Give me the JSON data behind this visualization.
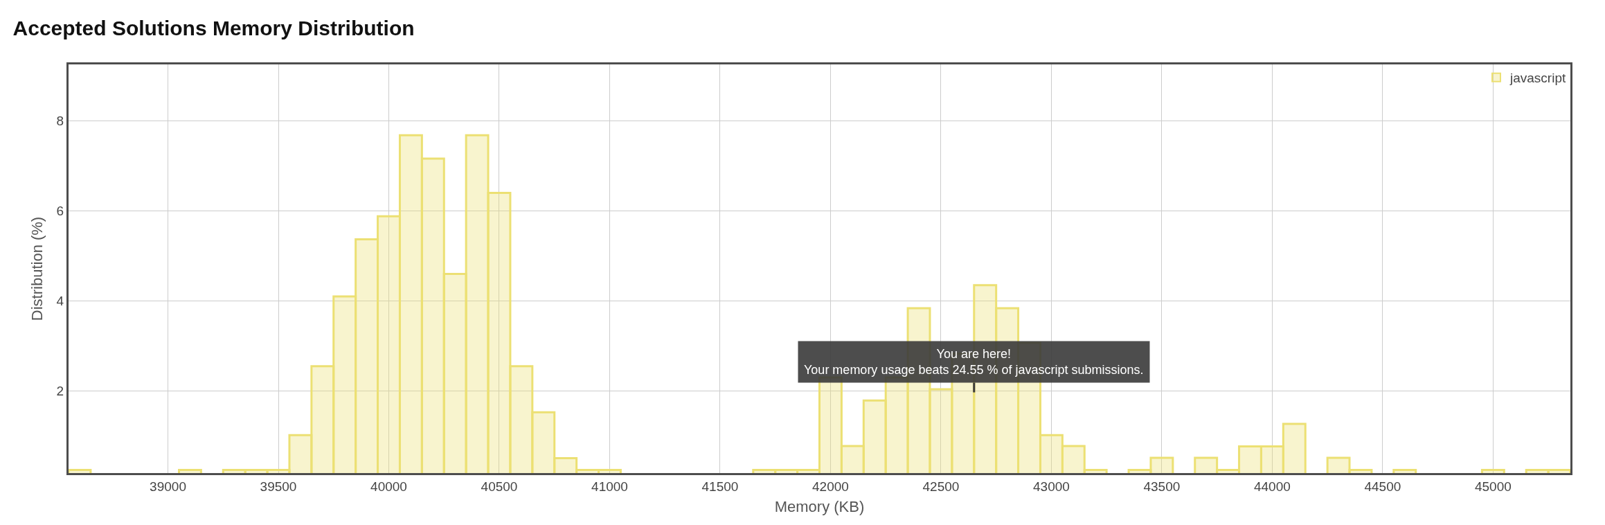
{
  "chart_data": {
    "type": "histogram",
    "title": "Accepted Solutions Memory Distribution",
    "xlabel": "Memory (KB)",
    "ylabel": "Distribution (%)",
    "bins": [
      38550,
      38650,
      38750,
      38850,
      38950,
      39050,
      39150,
      39250,
      39350,
      39450,
      39550,
      39650,
      39750,
      39850,
      39950,
      40050,
      40150,
      40250,
      40350,
      40450,
      40550,
      40650,
      40750,
      40850,
      40950,
      41050,
      41150,
      41250,
      41350,
      41450,
      41550,
      41650,
      41750,
      41850,
      41950,
      42050,
      42150,
      42250,
      42350,
      42450,
      42550,
      42650,
      42750,
      42850,
      42950,
      43050,
      43150,
      43250,
      43350,
      43450,
      43550,
      43650,
      43750,
      43850,
      43950,
      44050,
      44150,
      44250,
      44350,
      44450,
      44550,
      44650,
      44750,
      44850,
      44950,
      45050,
      45150,
      45250,
      45350
    ],
    "series": [
      {
        "name": "javascript",
        "color": "#ece073",
        "values": [
          0.25,
          null,
          null,
          null,
          null,
          0.25,
          null,
          0.25,
          0.25,
          0.25,
          1.02,
          2.55,
          4.1,
          5.37,
          5.88,
          7.68,
          7.16,
          4.6,
          7.68,
          6.4,
          2.55,
          1.53,
          0.51,
          0.25,
          0.25,
          null,
          null,
          null,
          null,
          null,
          null,
          0.25,
          0.25,
          0.25,
          2.3,
          0.78,
          1.79,
          2.3,
          3.84,
          2.04,
          2.83,
          4.35,
          3.84,
          3.07,
          1.02,
          0.78,
          0.25,
          null,
          0.25,
          0.52,
          null,
          0.52,
          0.25,
          0.77,
          0.77,
          1.27,
          null,
          0.52,
          0.25,
          null,
          0.25,
          null,
          null,
          null,
          0.25,
          null,
          0.25,
          0.25
        ]
      }
    ],
    "xlim": [
      38550,
      45350
    ],
    "xticks": [
      39000,
      39500,
      40000,
      40500,
      41000,
      41500,
      42000,
      42500,
      43000,
      43500,
      44000,
      44500,
      45000
    ],
    "ylim": [
      0.18,
      9.25
    ],
    "yticks": [
      2,
      4,
      6,
      8
    ],
    "annotations": [
      {
        "text": "You are here!\nYour memory usage beats 24.55 % of javascript submissions.",
        "x": 42650,
        "y": 1.97
      }
    ],
    "grid": true,
    "legend": "top right"
  }
}
